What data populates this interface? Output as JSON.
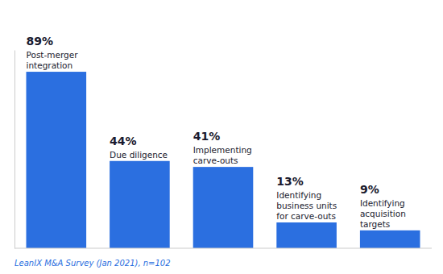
{
  "chart_data": {
    "type": "bar",
    "categories": [
      "Post-merger\nintegration",
      "Due diligence",
      "Implementing\ncarve-outs",
      "Identifying\nbusiness units\nfor carve-outs",
      "Identifying\nacquisition\ntargets"
    ],
    "values": [
      89,
      44,
      41,
      13,
      9
    ],
    "value_labels": [
      "89%",
      "44%",
      "41%",
      "13%",
      "9%"
    ],
    "data_labels": true,
    "color": "#2B6FE0",
    "ylim": [
      0,
      100
    ],
    "tick_labels": false,
    "grid": false,
    "annotations": [
      "LeanIX M&A Survey (Jan 2021), n=102"
    ]
  }
}
